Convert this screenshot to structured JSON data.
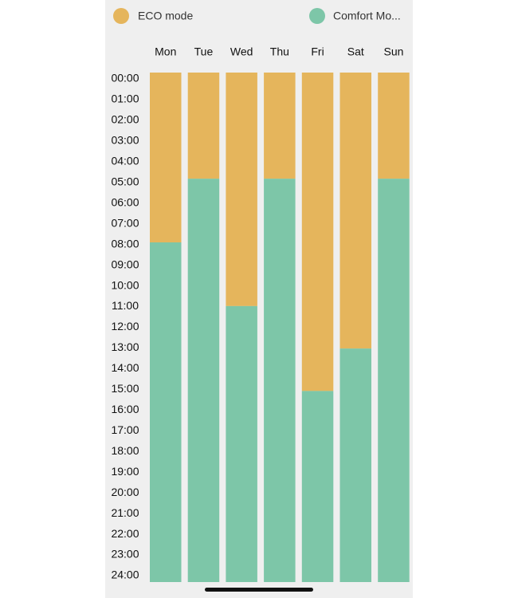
{
  "chart_data": {
    "type": "stacked_bar",
    "categories": [
      "Mon",
      "Tue",
      "Wed",
      "Thu",
      "Fri",
      "Sat",
      "Sun"
    ],
    "series": [
      {
        "name": "ECO mode",
        "color": "#e5b55c",
        "values": [
          8,
          5,
          11,
          5,
          15,
          13,
          5
        ]
      },
      {
        "name": "Comfort Mo...",
        "color": "#7dc6a8",
        "values": [
          16,
          19,
          13,
          19,
          9,
          11,
          19
        ]
      }
    ],
    "ylim": [
      0,
      24
    ],
    "y_reversed": true,
    "yticks": [
      {
        "value": 0,
        "label": "00:00"
      },
      {
        "value": 1,
        "label": "01:00"
      },
      {
        "value": 2,
        "label": "02:00"
      },
      {
        "value": 3,
        "label": "03:00"
      },
      {
        "value": 4,
        "label": "04:00"
      },
      {
        "value": 5,
        "label": "05:00"
      },
      {
        "value": 6,
        "label": "06:00"
      },
      {
        "value": 7,
        "label": "07:00"
      },
      {
        "value": 8,
        "label": "08:00"
      },
      {
        "value": 9,
        "label": "09:00"
      },
      {
        "value": 10,
        "label": "10:00"
      },
      {
        "value": 11,
        "label": "11:00"
      },
      {
        "value": 12,
        "label": "12:00"
      },
      {
        "value": 13,
        "label": "13:00"
      },
      {
        "value": 14,
        "label": "14:00"
      },
      {
        "value": 15,
        "label": "15:00"
      },
      {
        "value": 16,
        "label": "16:00"
      },
      {
        "value": 17,
        "label": "17:00"
      },
      {
        "value": 18,
        "label": "18:00"
      },
      {
        "value": 19,
        "label": "19:00"
      },
      {
        "value": 20,
        "label": "20:00"
      },
      {
        "value": 21,
        "label": "21:00"
      },
      {
        "value": 22,
        "label": "22:00"
      },
      {
        "value": 23,
        "label": "23:00"
      },
      {
        "value": 24,
        "label": "24:00"
      }
    ]
  }
}
